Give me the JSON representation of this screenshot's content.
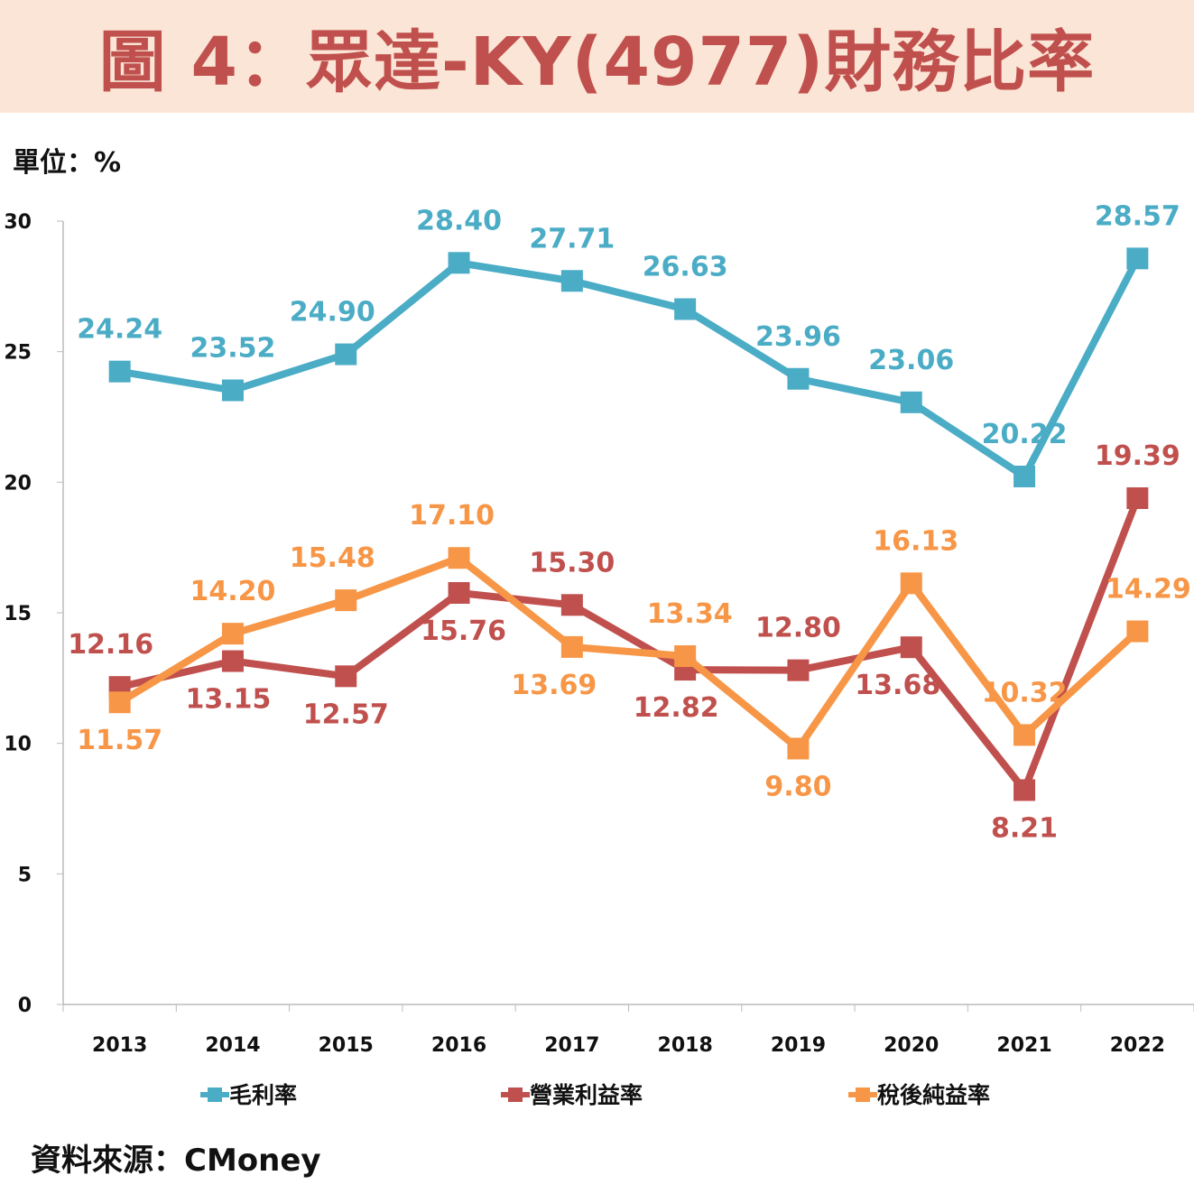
{
  "title": "圖 4：眾達-KY(4977)財務比率",
  "unit": "單位：%",
  "source": "資料來源：CMoney",
  "chart_data": {
    "type": "line",
    "title": "圖 4：眾達-KY(4977)財務比率",
    "ylabel": "單位：%",
    "ylim": [
      0,
      30
    ],
    "yticks": [
      0,
      5,
      10,
      15,
      20,
      25,
      30
    ],
    "categories": [
      "2013",
      "2014",
      "2015",
      "2016",
      "2017",
      "2018",
      "2019",
      "2020",
      "2021",
      "2022"
    ],
    "legend_position": "bottom",
    "series": [
      {
        "name": "毛利率",
        "color": "#4bacc6",
        "values": [
          24.24,
          23.52,
          24.9,
          28.4,
          27.71,
          26.63,
          23.96,
          23.06,
          20.22,
          28.57
        ]
      },
      {
        "name": "營業利益率",
        "color": "#c0504d",
        "values": [
          12.16,
          13.15,
          12.57,
          15.76,
          15.3,
          12.82,
          12.8,
          13.68,
          8.21,
          19.39
        ]
      },
      {
        "name": "稅後純益率",
        "color": "#f79646",
        "values": [
          11.57,
          14.2,
          15.48,
          17.1,
          13.69,
          13.34,
          9.8,
          16.13,
          10.32,
          14.29
        ]
      }
    ]
  }
}
